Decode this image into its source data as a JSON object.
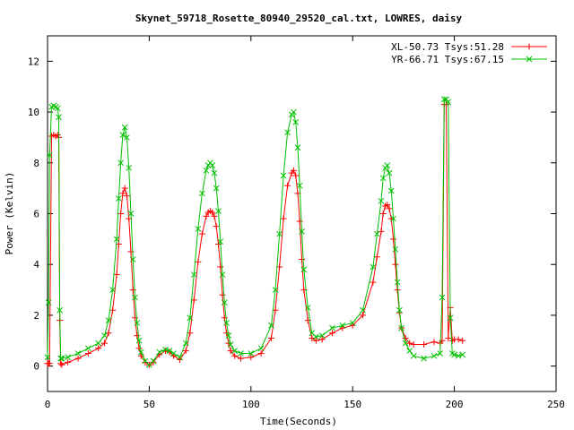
{
  "chart_data": {
    "type": "line",
    "title": "Skynet_59718_Rosette_80940_29520_cal.txt, LOWRES, daisy",
    "xlabel": "Time(Seconds)",
    "ylabel": "Power (Kelvin)",
    "xlim": [
      0,
      250
    ],
    "ylim": [
      -1,
      13
    ],
    "xticks": [
      0,
      50,
      100,
      150,
      200,
      250
    ],
    "yticks": [
      0,
      2,
      4,
      6,
      8,
      10,
      12
    ],
    "grid": false,
    "legend_position": "top-right",
    "series": [
      {
        "name": "XL-50.73 Tsys:51.28",
        "color": "#ff0000",
        "marker": "plus",
        "x": [
          0,
          0.5,
          1,
          2,
          3,
          4,
          5,
          5.5,
          6,
          6.5,
          7,
          10,
          15,
          20,
          25,
          28,
          30,
          32,
          34,
          35,
          36,
          37,
          38,
          39,
          40,
          41,
          42,
          43,
          44,
          45,
          46,
          48,
          50,
          52,
          55,
          58,
          60,
          62,
          65,
          68,
          70,
          72,
          74,
          76,
          78,
          79,
          80,
          81,
          82,
          83,
          84,
          85,
          86,
          87,
          88,
          89,
          90,
          92,
          95,
          100,
          105,
          110,
          112,
          114,
          116,
          118,
          120,
          121,
          122,
          123,
          124,
          125,
          126,
          128,
          130,
          132,
          135,
          140,
          145,
          150,
          155,
          160,
          162,
          164,
          165,
          166,
          167,
          168,
          169,
          170,
          171,
          172,
          173,
          174,
          176,
          178,
          180,
          185,
          190,
          193,
          194,
          195,
          196,
          197,
          198,
          199,
          200,
          202,
          204
        ],
        "y": [
          0.1,
          0.1,
          0.1,
          9.05,
          9.1,
          9.05,
          9.1,
          9.0,
          1.8,
          0.1,
          0.05,
          0.15,
          0.3,
          0.5,
          0.7,
          0.9,
          1.3,
          2.2,
          3.6,
          4.8,
          6.0,
          6.8,
          7.0,
          6.7,
          5.8,
          4.5,
          3.0,
          1.9,
          1.2,
          0.7,
          0.4,
          0.15,
          0.05,
          0.15,
          0.45,
          0.6,
          0.55,
          0.4,
          0.25,
          0.6,
          1.3,
          2.6,
          4.1,
          5.2,
          5.9,
          6.05,
          6.1,
          6.05,
          5.9,
          5.5,
          4.8,
          3.9,
          2.8,
          1.9,
          1.3,
          0.9,
          0.6,
          0.4,
          0.3,
          0.35,
          0.5,
          1.1,
          2.2,
          3.9,
          5.8,
          7.1,
          7.6,
          7.7,
          7.5,
          6.8,
          5.7,
          4.2,
          3.0,
          1.8,
          1.1,
          1.0,
          1.05,
          1.3,
          1.5,
          1.6,
          2.0,
          3.3,
          4.3,
          5.3,
          6.0,
          6.3,
          6.35,
          6.2,
          5.8,
          5.0,
          4.0,
          3.0,
          2.1,
          1.5,
          1.1,
          0.9,
          0.85,
          0.85,
          0.95,
          0.9,
          1.0,
          10.3,
          10.3,
          1.1,
          2.3,
          1.0,
          1.05,
          1.05,
          1.0
        ]
      },
      {
        "name": "YR-66.71 Tsys:67.15",
        "color": "#00c000",
        "marker": "x",
        "x": [
          0,
          0.5,
          1,
          2,
          3,
          4,
          5,
          5.5,
          6,
          6.5,
          7,
          10,
          15,
          20,
          25,
          28,
          30,
          32,
          34,
          35,
          36,
          37,
          38,
          39,
          40,
          41,
          42,
          43,
          44,
          45,
          46,
          48,
          50,
          52,
          55,
          58,
          60,
          62,
          65,
          68,
          70,
          72,
          74,
          76,
          78,
          79,
          80,
          81,
          82,
          83,
          84,
          85,
          86,
          87,
          88,
          89,
          90,
          92,
          95,
          100,
          105,
          110,
          112,
          114,
          116,
          118,
          120,
          121,
          122,
          123,
          124,
          125,
          126,
          128,
          130,
          132,
          135,
          140,
          145,
          150,
          155,
          160,
          162,
          164,
          165,
          166,
          167,
          168,
          169,
          170,
          171,
          172,
          173,
          174,
          176,
          178,
          180,
          185,
          190,
          193,
          194,
          195,
          196,
          197,
          198,
          199,
          200,
          202,
          204
        ],
        "y": [
          0.35,
          2.5,
          8.3,
          10.2,
          10.25,
          10.2,
          10.15,
          9.8,
          2.2,
          0.3,
          0.3,
          0.35,
          0.5,
          0.7,
          0.9,
          1.2,
          1.8,
          3.0,
          5.0,
          6.6,
          8.0,
          9.1,
          9.4,
          9.0,
          7.8,
          6.0,
          4.2,
          2.7,
          1.7,
          1.0,
          0.55,
          0.2,
          0.05,
          0.2,
          0.55,
          0.65,
          0.6,
          0.5,
          0.35,
          0.9,
          1.9,
          3.6,
          5.4,
          6.8,
          7.7,
          7.9,
          8.0,
          7.9,
          7.6,
          7.0,
          6.1,
          4.9,
          3.6,
          2.5,
          1.7,
          1.2,
          0.85,
          0.6,
          0.5,
          0.5,
          0.7,
          1.6,
          3.0,
          5.2,
          7.5,
          9.2,
          9.9,
          10.0,
          9.6,
          8.6,
          7.1,
          5.3,
          3.8,
          2.3,
          1.3,
          1.15,
          1.2,
          1.5,
          1.6,
          1.7,
          2.2,
          3.9,
          5.2,
          6.5,
          7.4,
          7.8,
          7.9,
          7.6,
          6.9,
          5.8,
          4.6,
          3.3,
          2.2,
          1.5,
          0.9,
          0.6,
          0.4,
          0.3,
          0.4,
          0.5,
          2.7,
          10.5,
          10.5,
          10.4,
          1.9,
          0.5,
          0.45,
          0.4,
          0.45
        ]
      }
    ]
  }
}
